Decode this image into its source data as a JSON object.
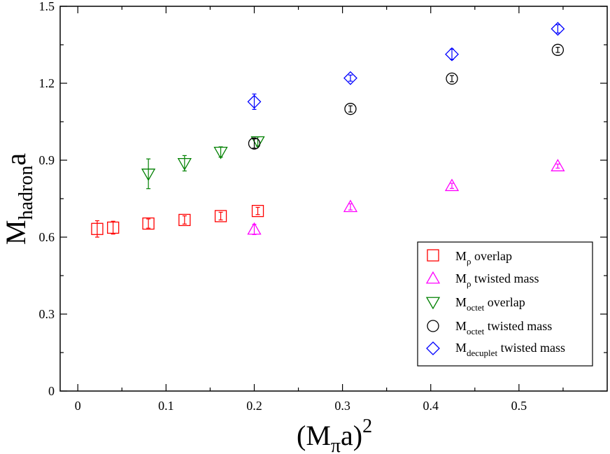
{
  "chart_data": {
    "type": "scatter",
    "xlabel": {
      "base": "(M",
      "sub": "π",
      "mid": "a)",
      "sup": "2"
    },
    "ylabel": {
      "base": "M",
      "sub": "hadron",
      "tail": "a"
    },
    "xlim": [
      -0.02,
      0.6
    ],
    "ylim": [
      0,
      1.5
    ],
    "xticks": [
      0,
      0.1,
      0.2,
      0.3,
      0.4,
      0.5
    ],
    "xtick_labels": [
      "0",
      "0.1",
      "0.2",
      "0.3",
      "0.4",
      "0.5"
    ],
    "yticks": [
      0,
      0.3,
      0.6,
      0.9,
      1.2,
      1.5
    ],
    "ytick_labels": [
      "0",
      "0.3",
      "0.6",
      "0.9",
      "1.2",
      "1.5"
    ],
    "legend_position": "bottom-right",
    "series": [
      {
        "id": "rho_overlap",
        "marker": "square",
        "color": "#ff0000",
        "legend": {
          "base": "M",
          "sub": "ρ",
          "rest": " overlap"
        },
        "points": [
          {
            "x": 0.022,
            "y": 0.632,
            "err": 0.032
          },
          {
            "x": 0.04,
            "y": 0.637,
            "err": 0.025
          },
          {
            "x": 0.08,
            "y": 0.653,
            "err": 0.018
          },
          {
            "x": 0.121,
            "y": 0.667,
            "err": 0.016
          },
          {
            "x": 0.162,
            "y": 0.682,
            "err": 0.015
          },
          {
            "x": 0.204,
            "y": 0.702,
            "err": 0.014
          }
        ]
      },
      {
        "id": "rho_twisted",
        "marker": "triangle-up",
        "color": "#ff00ff",
        "legend": {
          "base": "M",
          "sub": "ρ",
          "rest": " twisted mass"
        },
        "points": [
          {
            "x": 0.2,
            "y": 0.63,
            "err": 0.02
          },
          {
            "x": 0.309,
            "y": 0.718,
            "err": 0.012
          },
          {
            "x": 0.424,
            "y": 0.8,
            "err": 0.01
          },
          {
            "x": 0.544,
            "y": 0.877,
            "err": 0.008
          }
        ]
      },
      {
        "id": "octet_overlap",
        "marker": "triangle-down",
        "color": "#008000",
        "legend": {
          "base": "M",
          "sub": "octet",
          "rest": " overlap"
        },
        "points": [
          {
            "x": 0.08,
            "y": 0.847,
            "err": 0.058
          },
          {
            "x": 0.121,
            "y": 0.888,
            "err": 0.03
          },
          {
            "x": 0.162,
            "y": 0.932,
            "err": 0.02
          },
          {
            "x": 0.204,
            "y": 0.973,
            "err": 0.018
          }
        ]
      },
      {
        "id": "octet_twisted",
        "marker": "circle",
        "color": "#000000",
        "legend": {
          "base": "M",
          "sub": "octet",
          "rest": " twisted mass"
        },
        "points": [
          {
            "x": 0.2,
            "y": 0.965,
            "err": 0.018
          },
          {
            "x": 0.309,
            "y": 1.1,
            "err": 0.012
          },
          {
            "x": 0.424,
            "y": 1.218,
            "err": 0.012
          },
          {
            "x": 0.544,
            "y": 1.33,
            "err": 0.01
          }
        ]
      },
      {
        "id": "decuplet_twisted",
        "marker": "diamond",
        "color": "#0000ff",
        "legend": {
          "base": "M",
          "sub": "decuplet",
          "rest": " twisted mass"
        },
        "points": [
          {
            "x": 0.2,
            "y": 1.128,
            "err": 0.03
          },
          {
            "x": 0.309,
            "y": 1.22,
            "err": 0.012
          },
          {
            "x": 0.424,
            "y": 1.313,
            "err": 0.02
          },
          {
            "x": 0.544,
            "y": 1.412,
            "err": 0.016
          }
        ]
      }
    ]
  }
}
